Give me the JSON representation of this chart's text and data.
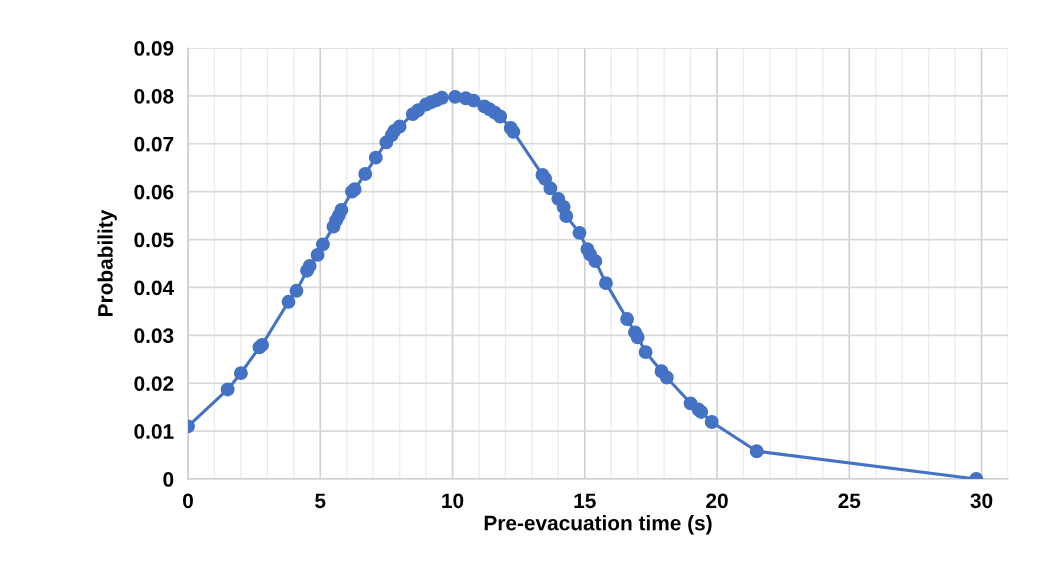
{
  "chart_data": {
    "type": "line",
    "xlabel": "Pre-evacuation time (s)",
    "ylabel": "Probability",
    "series": [
      {
        "color": "#4472c4",
        "marker": "circle",
        "x": [
          0,
          1.5,
          2,
          2.7,
          2.8,
          3.8,
          4.1,
          4.5,
          4.6,
          4.9,
          5.1,
          5.5,
          5.6,
          5.7,
          5.8,
          6.2,
          6.3,
          6.7,
          7.1,
          7.5,
          7.7,
          7.8,
          8.0,
          8.5,
          8.7,
          9.0,
          9.2,
          9.4,
          9.6,
          10.1,
          10.5,
          10.8,
          11.2,
          11.4,
          11.6,
          11.8,
          12.2,
          12.3,
          13.4,
          13.5,
          13.7,
          14.0,
          14.2,
          14.3,
          14.8,
          15.1,
          15.2,
          15.4,
          15.8,
          16.6,
          16.9,
          17.0,
          17.3,
          17.9,
          18.1,
          19.0,
          19.3,
          19.4,
          19.8,
          21.5,
          29.8
        ],
        "values": [
          0.011,
          0.0187,
          0.0221,
          0.0275,
          0.028,
          0.037,
          0.0393,
          0.0435,
          0.0445,
          0.0468,
          0.049,
          0.0527,
          0.054,
          0.055,
          0.0562,
          0.06,
          0.0605,
          0.0637,
          0.0671,
          0.0703,
          0.0718,
          0.0727,
          0.0736,
          0.0762,
          0.077,
          0.0782,
          0.0787,
          0.0791,
          0.0796,
          0.0798,
          0.0795,
          0.079,
          0.0778,
          0.0772,
          0.0765,
          0.0757,
          0.0733,
          0.0725,
          0.0635,
          0.0627,
          0.0607,
          0.0585,
          0.0568,
          0.0549,
          0.0514,
          0.048,
          0.0469,
          0.0455,
          0.0409,
          0.0334,
          0.0306,
          0.0296,
          0.0265,
          0.0225,
          0.0212,
          0.0158,
          0.0145,
          0.014,
          0.0119,
          0.0058,
          0.0
        ]
      }
    ],
    "xlim": [
      0,
      31
    ],
    "ylim": [
      0,
      0.09
    ],
    "xticks": [
      0,
      {
        "value": 1,
        "label": null
      },
      {
        "value": 2,
        "label": null
      },
      {
        "value": 3,
        "label": null
      },
      {
        "value": 4,
        "label": null
      },
      5,
      {
        "value": 6,
        "label": null
      },
      {
        "value": 7,
        "label": null
      },
      {
        "value": 8,
        "label": null
      },
      {
        "value": 9,
        "label": null
      },
      10,
      {
        "value": 11,
        "label": null
      },
      {
        "value": 12,
        "label": null
      },
      {
        "value": 13,
        "label": null
      },
      {
        "value": 14,
        "label": null
      },
      15,
      {
        "value": 16,
        "label": null
      },
      {
        "value": 17,
        "label": null
      },
      {
        "value": 18,
        "label": null
      },
      {
        "value": 19,
        "label": null
      },
      20,
      {
        "value": 21,
        "label": null
      },
      {
        "value": 22,
        "label": null
      },
      {
        "value": 23,
        "label": null
      },
      {
        "value": 24,
        "label": null
      },
      25,
      {
        "value": 26,
        "label": null
      },
      {
        "value": 27,
        "label": null
      },
      {
        "value": 28,
        "label": null
      },
      {
        "value": 29,
        "label": null
      },
      30,
      {
        "value": 31,
        "label": null
      }
    ],
    "yticks": [
      {
        "value": 0,
        "label": "0"
      },
      {
        "value": 0.01,
        "label": "0.01"
      },
      {
        "value": 0.02,
        "label": "0.02"
      },
      {
        "value": 0.03,
        "label": "0.03"
      },
      {
        "value": 0.04,
        "label": "0.04"
      },
      {
        "value": 0.05,
        "label": "0.05"
      },
      {
        "value": 0.06,
        "label": "0.06"
      },
      {
        "value": 0.07,
        "label": "0.07"
      },
      {
        "value": 0.08,
        "label": "0.08"
      },
      {
        "value": 0.09,
        "label": "0.09"
      }
    ],
    "grid": true,
    "legend": false
  }
}
